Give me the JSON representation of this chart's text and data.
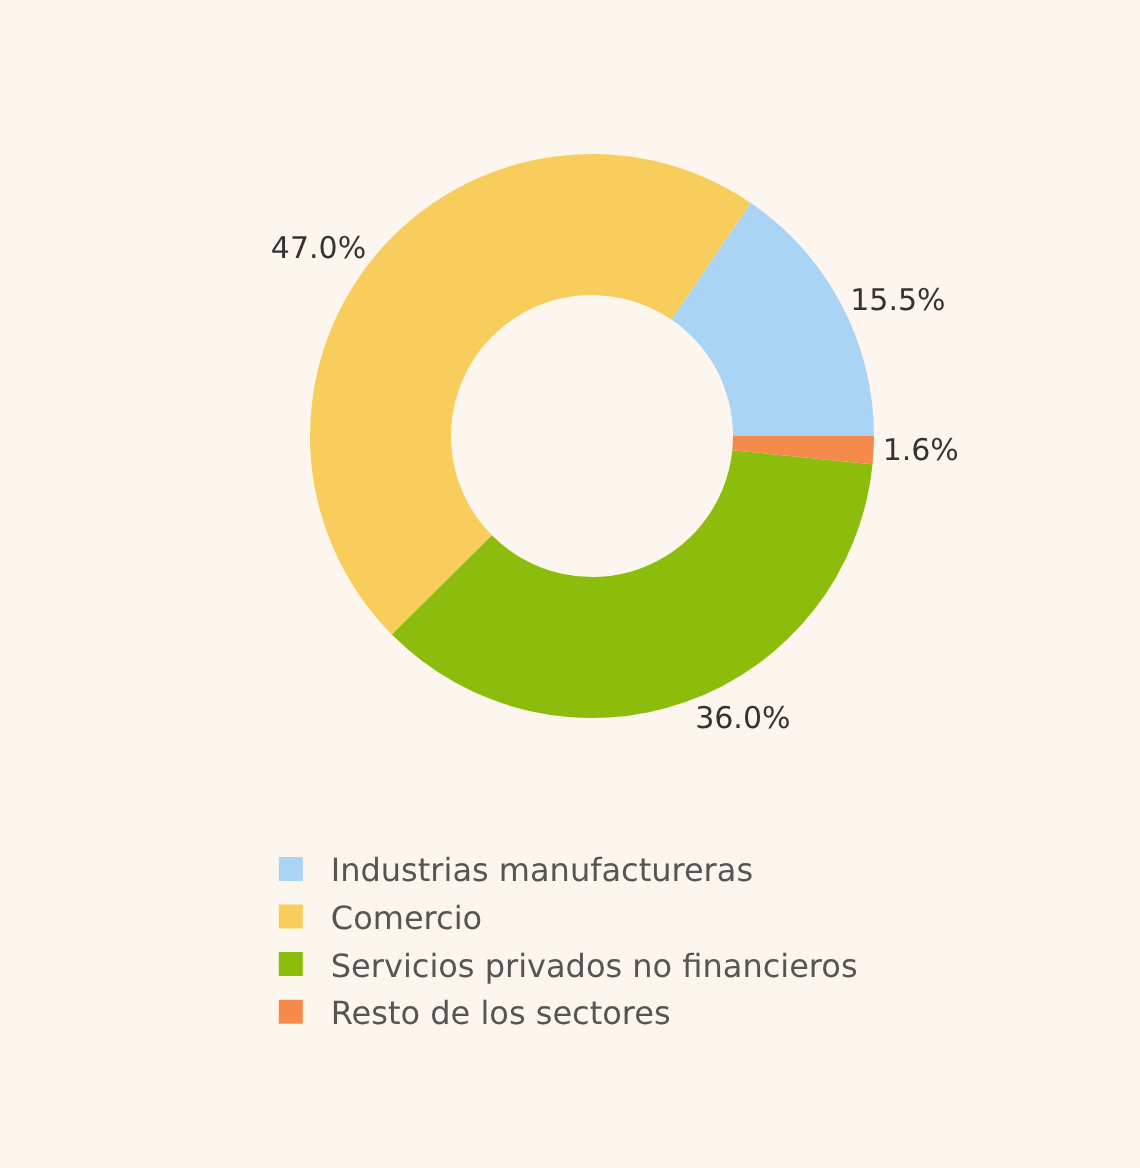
{
  "chart_data": {
    "type": "donut",
    "categories": [
      "Industrias manufactureras",
      "Comercio",
      "Servicios privados no financieros",
      "Resto de los sectores"
    ],
    "values": [
      15.5,
      47.0,
      36.0,
      1.6
    ],
    "colors": [
      "#a9d4f4",
      "#f8cd5c",
      "#8cbd0d",
      "#f68a4c"
    ],
    "value_labels": [
      "15.5%",
      "47.0%",
      "36.0%",
      "1.6%"
    ],
    "legend": "bottom"
  }
}
